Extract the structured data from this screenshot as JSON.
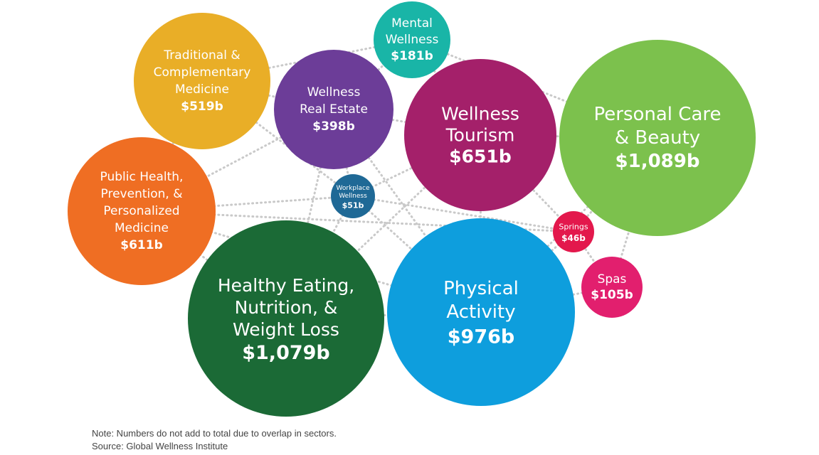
{
  "chart_data": {
    "type": "bubble",
    "title": "",
    "unit": "billions USD",
    "bubbles": [
      {
        "id": "traditional",
        "label_lines": [
          "Traditional &",
          "Complementary",
          "Medicine"
        ],
        "value_label": "$519b",
        "value": 519,
        "color": "#E9AE27"
      },
      {
        "id": "mental",
        "label_lines": [
          "Mental",
          "Wellness"
        ],
        "value_label": "$181b",
        "value": 181,
        "color": "#19B5A7"
      },
      {
        "id": "realestate",
        "label_lines": [
          "Wellness",
          "Real Estate"
        ],
        "value_label": "$398b",
        "value": 398,
        "color": "#6C3D98"
      },
      {
        "id": "tourism",
        "label_lines": [
          "Wellness",
          "Tourism"
        ],
        "value_label": "$651b",
        "value": 651,
        "color": "#A4206A"
      },
      {
        "id": "beauty",
        "label_lines": [
          "Personal Care",
          "& Beauty"
        ],
        "value_label": "$1,089b",
        "value": 1089,
        "color": "#7CC14D"
      },
      {
        "id": "publichealth",
        "label_lines": [
          "Public Health,",
          "Prevention, &",
          "Personalized",
          "Medicine"
        ],
        "value_label": "$611b",
        "value": 611,
        "color": "#EF6E23"
      },
      {
        "id": "workplace",
        "label_lines": [
          "Workplace",
          "Wellness"
        ],
        "value_label": "$51b",
        "value": 51,
        "color": "#1F6996"
      },
      {
        "id": "springs",
        "label_lines": [
          "Springs"
        ],
        "value_label": "$46b",
        "value": 46,
        "color": "#E3184C"
      },
      {
        "id": "spas",
        "label_lines": [
          "Spas"
        ],
        "value_label": "$105b",
        "value": 105,
        "color": "#E21F6E"
      },
      {
        "id": "eating",
        "label_lines": [
          "Healthy Eating,",
          "Nutrition, &",
          "Weight Loss"
        ],
        "value_label": "$1,079b",
        "value": 1079,
        "color": "#1B6A36"
      },
      {
        "id": "physical",
        "label_lines": [
          "Physical",
          "Activity"
        ],
        "value_label": "$976b",
        "value": 976,
        "color": "#0E9EDD"
      }
    ]
  },
  "notes": {
    "note": "Note: Numbers do not add to total due to overlap in sectors.",
    "source": "Source: Global Wellness Institute"
  }
}
